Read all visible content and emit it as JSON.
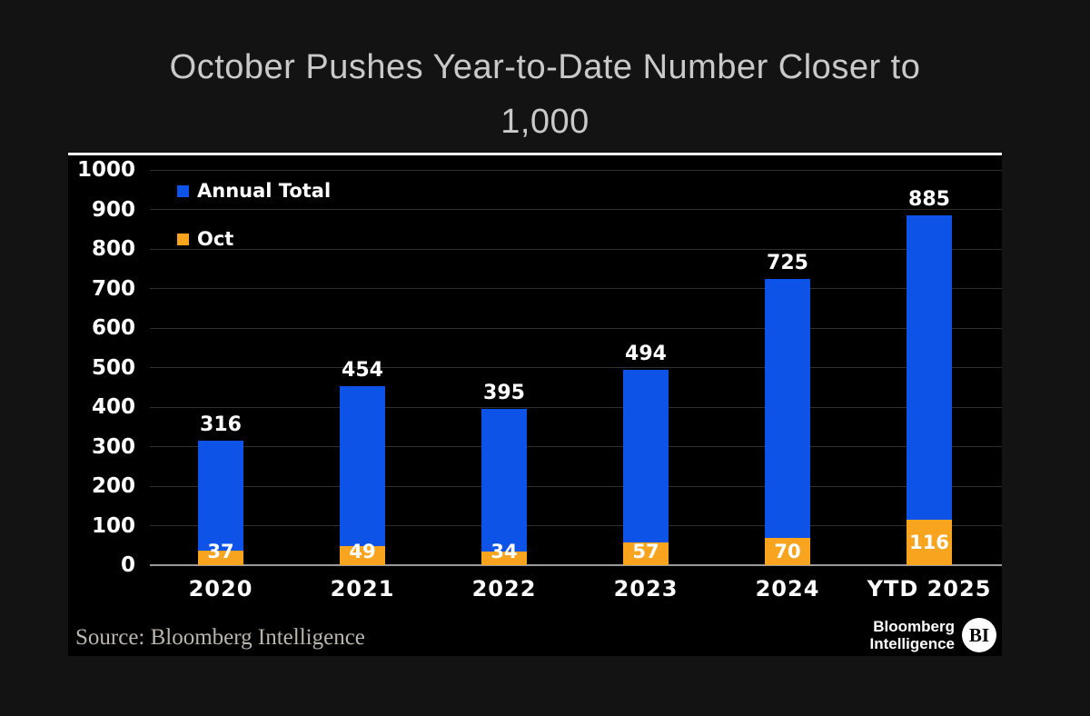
{
  "title": {
    "line1": "October Pushes Year-to-Date Number Closer to",
    "line2": "1,000",
    "full": "October Pushes Year-to-Date Number Closer to 1,000"
  },
  "chart_data": {
    "type": "bar",
    "overlay": true,
    "categories": [
      "2020",
      "2021",
      "2022",
      "2023",
      "2024",
      "YTD 2025"
    ],
    "series": [
      {
        "name": "Annual Total",
        "color": "#0d53e8",
        "values": [
          316,
          454,
          395,
          494,
          725,
          885
        ]
      },
      {
        "name": "Oct",
        "color": "#f8a41f",
        "values": [
          37,
          49,
          34,
          57,
          70,
          116
        ]
      }
    ],
    "ylim": [
      0,
      1000
    ],
    "ytick_step": 100,
    "grid": "horizontal",
    "legend_position": "top-left",
    "value_labels": true
  },
  "footer": {
    "source": "Source: Bloomberg Intelligence",
    "brand_line1": "Bloomberg",
    "brand_line2": "Intelligence",
    "brand_badge": "BI"
  },
  "colors": {
    "background_outer": "#131313",
    "background_panel": "#000000",
    "panel_top_border": "#ffffff",
    "annual_total": "#0d53e8",
    "oct": "#f8a41f",
    "gridline": "#2e2e2e",
    "baseline": "#9a9a9a",
    "title_text": "#c9c9c9",
    "label_text": "#ffffff",
    "source_text": "#bab6ae"
  }
}
